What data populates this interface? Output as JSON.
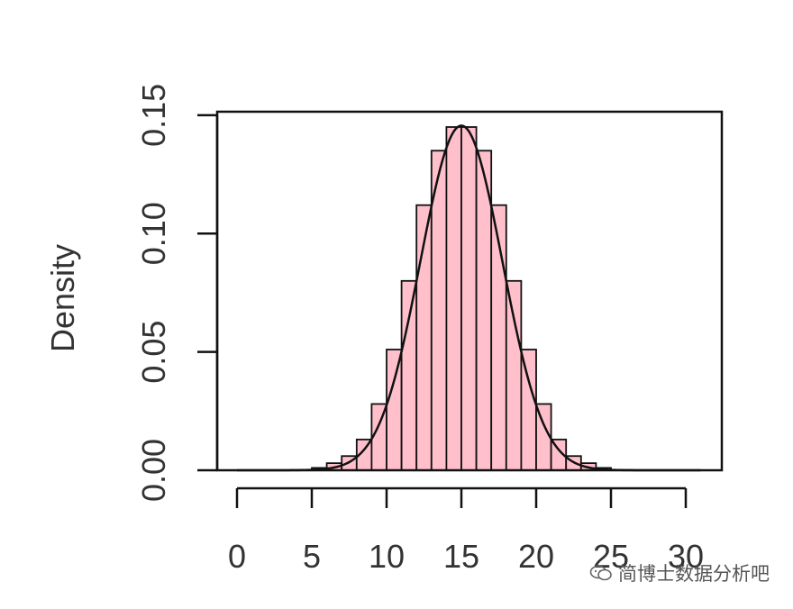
{
  "chart_data": {
    "type": "bar",
    "title": "",
    "xlabel": "",
    "ylabel": "Density",
    "xlim": [
      -0.5,
      31
    ],
    "ylim": [
      0,
      0.15
    ],
    "x_ticks": [
      "0",
      "5",
      "10",
      "15",
      "20",
      "25",
      "30"
    ],
    "x_tick_values": [
      0,
      5,
      10,
      15,
      20,
      25,
      30
    ],
    "y_ticks": [
      "0.00",
      "0.05",
      "0.10",
      "0.15"
    ],
    "y_tick_values": [
      0,
      0.05,
      0.1,
      0.15
    ],
    "grid": false,
    "bar_color": "#ffc0cb",
    "edge_color": "#111111",
    "bins": [
      {
        "from": 5,
        "to": 6,
        "density": 0.001
      },
      {
        "from": 6,
        "to": 7,
        "density": 0.003
      },
      {
        "from": 7,
        "to": 8,
        "density": 0.006
      },
      {
        "from": 8,
        "to": 9,
        "density": 0.013
      },
      {
        "from": 9,
        "to": 10,
        "density": 0.028
      },
      {
        "from": 10,
        "to": 11,
        "density": 0.051
      },
      {
        "from": 11,
        "to": 12,
        "density": 0.08
      },
      {
        "from": 12,
        "to": 13,
        "density": 0.112
      },
      {
        "from": 13,
        "to": 14,
        "density": 0.135
      },
      {
        "from": 14,
        "to": 15,
        "density": 0.145
      },
      {
        "from": 15,
        "to": 16,
        "density": 0.145
      },
      {
        "from": 16,
        "to": 17,
        "density": 0.135
      },
      {
        "from": 17,
        "to": 18,
        "density": 0.112
      },
      {
        "from": 18,
        "to": 19,
        "density": 0.08
      },
      {
        "from": 19,
        "to": 20,
        "density": 0.051
      },
      {
        "from": 20,
        "to": 21,
        "density": 0.028
      },
      {
        "from": 21,
        "to": 22,
        "density": 0.013
      },
      {
        "from": 22,
        "to": 23,
        "density": 0.006
      },
      {
        "from": 23,
        "to": 24,
        "density": 0.003
      },
      {
        "from": 24,
        "to": 25,
        "density": 0.001
      }
    ],
    "density_curve": {
      "distribution": "normal",
      "mean": 15,
      "sd": 2.74,
      "x_range": [
        0,
        31
      ]
    }
  },
  "watermark": {
    "text": "简博士数据分析吧",
    "icon": "wechat-icon"
  }
}
